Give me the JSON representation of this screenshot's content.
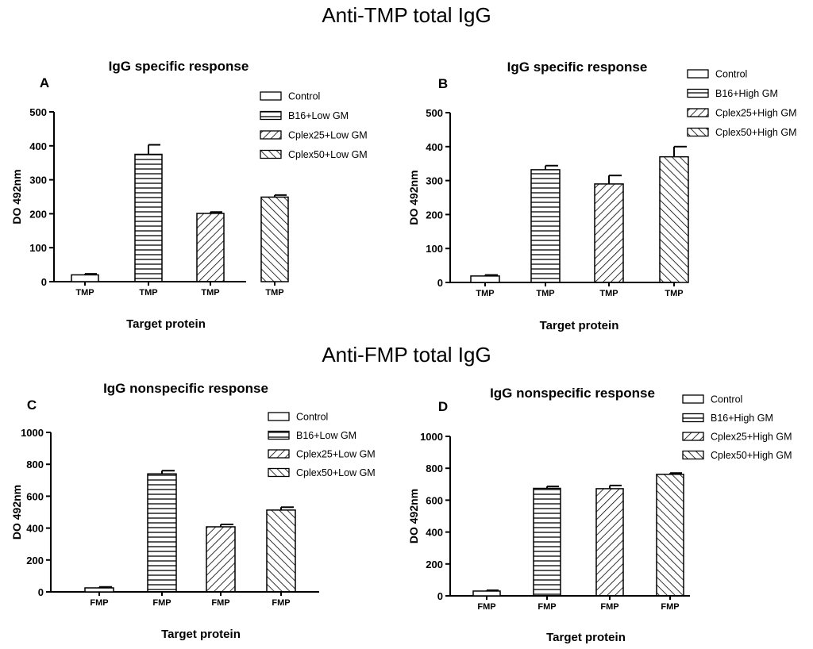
{
  "sections": {
    "top": "Anti-TMP total IgG",
    "bottom": "Anti-FMP total IgG"
  },
  "chart_data": [
    {
      "type": "bar",
      "panel": "A",
      "title": "IgG specific response",
      "xlabel": "Target protein",
      "ylabel": "DO 492nm",
      "categories": [
        "TMP",
        "TMP",
        "TMP",
        "TMP"
      ],
      "ylim": [
        0,
        500
      ],
      "yticks": [
        0,
        100,
        200,
        300,
        400,
        500
      ],
      "series": [
        {
          "name": "Control",
          "value": 20,
          "error": 3,
          "pattern": "none"
        },
        {
          "name": "B16+Low GM",
          "value": 375,
          "error": 28,
          "pattern": "horizontal"
        },
        {
          "name": "Cplex25+Low GM",
          "value": 201,
          "error": 4,
          "pattern": "back-diagonal"
        },
        {
          "name": "Cplex50+Low GM",
          "value": 249,
          "error": 6,
          "pattern": "forward-diagonal"
        }
      ],
      "legend_position": "top-right"
    },
    {
      "type": "bar",
      "panel": "B",
      "title": "IgG specific response",
      "xlabel": "Target protein",
      "ylabel": "DO 492nm",
      "categories": [
        "TMP",
        "TMP",
        "TMP",
        "TMP"
      ],
      "ylim": [
        0,
        500
      ],
      "yticks": [
        0,
        100,
        200,
        300,
        400,
        500
      ],
      "series": [
        {
          "name": "Control",
          "value": 19,
          "error": 3,
          "pattern": "none"
        },
        {
          "name": "B16+High GM",
          "value": 332,
          "error": 12,
          "pattern": "horizontal"
        },
        {
          "name": "Cplex25+High GM",
          "value": 290,
          "error": 25,
          "pattern": "back-diagonal"
        },
        {
          "name": "Cplex50+High GM",
          "value": 370,
          "error": 30,
          "pattern": "forward-diagonal"
        }
      ],
      "legend_position": "top-right"
    },
    {
      "type": "bar",
      "panel": "C",
      "title": "IgG nonspecific response",
      "xlabel": "Target protein",
      "ylabel": "DO 492nm",
      "categories": [
        "FMP",
        "FMP",
        "FMP",
        "FMP"
      ],
      "ylim": [
        0,
        1000
      ],
      "yticks": [
        0,
        200,
        400,
        600,
        800,
        1000
      ],
      "series": [
        {
          "name": "Control",
          "value": 25,
          "error": 6,
          "pattern": "none"
        },
        {
          "name": "B16+Low GM",
          "value": 740,
          "error": 20,
          "pattern": "horizontal"
        },
        {
          "name": "Cplex25+Low GM",
          "value": 408,
          "error": 15,
          "pattern": "back-diagonal"
        },
        {
          "name": "Cplex50+Low GM",
          "value": 513,
          "error": 18,
          "pattern": "forward-diagonal"
        }
      ],
      "legend_position": "top-right"
    },
    {
      "type": "bar",
      "panel": "D",
      "title": "IgG nonspecific response",
      "xlabel": "Target protein",
      "ylabel": "DO 492nm",
      "categories": [
        "FMP",
        "FMP",
        "FMP",
        "FMP"
      ],
      "ylim": [
        0,
        1000
      ],
      "yticks": [
        0,
        200,
        400,
        600,
        800,
        1000
      ],
      "series": [
        {
          "name": "Control",
          "value": 30,
          "error": 5,
          "pattern": "none"
        },
        {
          "name": "B16+High GM",
          "value": 674,
          "error": 12,
          "pattern": "horizontal"
        },
        {
          "name": "Cplex25+High GM",
          "value": 672,
          "error": 20,
          "pattern": "back-diagonal"
        },
        {
          "name": "Cplex50+High GM",
          "value": 762,
          "error": 8,
          "pattern": "forward-diagonal"
        }
      ],
      "legend_position": "top-right"
    }
  ]
}
